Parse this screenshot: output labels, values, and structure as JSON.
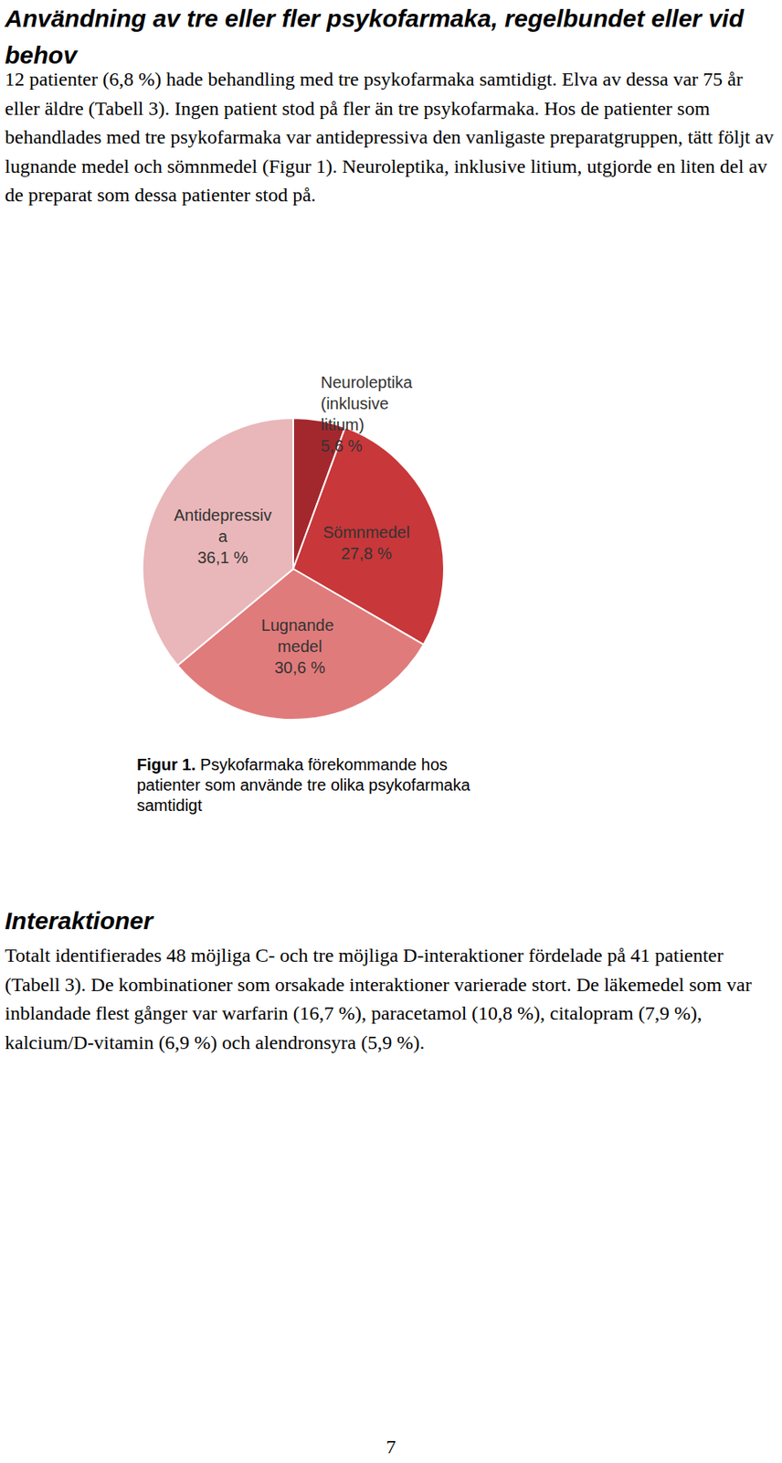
{
  "heading1": "Användning av tre eller fler psykofarmaka, regelbundet eller vid behov",
  "paragraph1": "12 patienter (6,8 %) hade behandling med tre psykofarmaka samtidigt. Elva av dessa var 75 år eller äldre (Tabell 3). Ingen patient stod på fler än tre psykofarmaka. Hos de patienter som behandlades med tre psykofarmaka var antidepressiva den vanligaste preparatgruppen, tätt följt av lugnande medel och sömnmedel (Figur 1). Neuroleptika, inklusive litium, utgjorde en liten del av de preparat som dessa patienter stod på.",
  "chart_data": {
    "type": "pie",
    "categories": [
      "Neuroleptika (inklusive litium)",
      "Sömnmedel",
      "Lugnande medel",
      "Antidepressiva"
    ],
    "values": [
      5.6,
      27.8,
      30.6,
      36.1
    ],
    "value_labels": [
      "5,6 %",
      "27,8 %",
      "30,6 %",
      "36,1 %"
    ],
    "colors": [
      "#a3282e",
      "#c8373a",
      "#e07b7b",
      "#e9b7b9"
    ],
    "data_labels": true
  },
  "caption": {
    "label": "Figur 1.",
    "text": "Psykofarmaka förekommande hos patienter som använde tre olika psykofarmaka samtidigt"
  },
  "heading2": "Interaktioner",
  "paragraph2": "Totalt identifierades 48 möjliga C- och tre möjliga D-interaktioner fördelade på 41 patienter (Tabell 3). De kombinationer som orsakade interaktioner varierade stort. De läkemedel som var inblandade flest gånger var warfarin (16,7 %), paracetamol (10,8 %), citalopram (7,9 %), kalcium/D-vitamin (6,9 %) och alendronsyra (5,9 %).",
  "page_number": "7"
}
